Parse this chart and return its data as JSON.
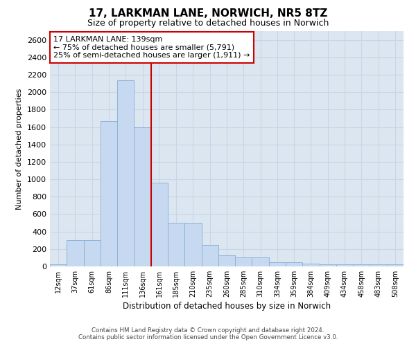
{
  "title": "17, LARKMAN LANE, NORWICH, NR5 8TZ",
  "subtitle": "Size of property relative to detached houses in Norwich",
  "xlabel": "Distribution of detached houses by size in Norwich",
  "ylabel": "Number of detached properties",
  "categories": [
    "12sqm",
    "37sqm",
    "61sqm",
    "86sqm",
    "111sqm",
    "136sqm",
    "161sqm",
    "185sqm",
    "210sqm",
    "235sqm",
    "260sqm",
    "285sqm",
    "310sqm",
    "334sqm",
    "359sqm",
    "384sqm",
    "409sqm",
    "434sqm",
    "458sqm",
    "483sqm",
    "508sqm"
  ],
  "values": [
    25,
    300,
    300,
    1670,
    2140,
    1600,
    960,
    500,
    500,
    250,
    125,
    100,
    100,
    50,
    50,
    30,
    20,
    20,
    20,
    20,
    25
  ],
  "bar_color": "#c6d9f0",
  "bar_edge_color": "#8db3d9",
  "vline_x_index": 5,
  "vline_color": "#cc0000",
  "annotation_text": "17 LARKMAN LANE: 139sqm\n← 75% of detached houses are smaller (5,791)\n25% of semi-detached houses are larger (1,911) →",
  "annotation_box_color": "#ffffff",
  "annotation_box_edge": "#cc0000",
  "ylim": [
    0,
    2700
  ],
  "yticks": [
    0,
    200,
    400,
    600,
    800,
    1000,
    1200,
    1400,
    1600,
    1800,
    2000,
    2200,
    2400,
    2600
  ],
  "grid_color": "#c8d4e8",
  "background_color": "#dce6f1",
  "footer1": "Contains HM Land Registry data © Crown copyright and database right 2024.",
  "footer2": "Contains public sector information licensed under the Open Government Licence v3.0."
}
